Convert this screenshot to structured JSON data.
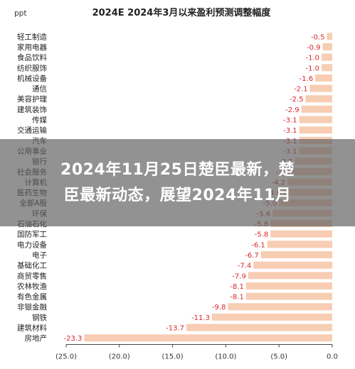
{
  "chart_data": {
    "type": "bar",
    "orientation": "horizontal",
    "title": "2024E 2024年3月以来盈利预测调整幅度",
    "unit_label": "ppt",
    "categories": [
      "轻工制造",
      "家用电器",
      "食品饮料",
      "纺织服饰",
      "机械设备",
      "通信",
      "美容护理",
      "建筑装饰",
      "传媒",
      "交通运输",
      "汽车",
      "公用事业",
      "银行",
      "社会服务",
      "计算机",
      "医药生物",
      "全部A股",
      "环保",
      "石油石化",
      "国防军工",
      "电力设备",
      "电子",
      "基础化工",
      "商贸零售",
      "农林牧渔",
      "有色金属",
      "非银金融",
      "钢铁",
      "建筑材料",
      "房地产"
    ],
    "values": [
      -0.5,
      -0.9,
      -1.0,
      -1.0,
      -1.6,
      -2.1,
      -2.5,
      -2.9,
      -3.1,
      -3.1,
      -3.1,
      -3.1,
      -3.5,
      -3.8,
      -4.2,
      -4.6,
      -5.0,
      -5.6,
      -5.8,
      -5.8,
      -6.1,
      -6.7,
      -7.4,
      -7.9,
      -8.1,
      -8.1,
      -9.8,
      -11.3,
      -13.7,
      -23.3
    ],
    "value_labels": [
      "-0.5",
      "-0.9",
      "-1.0",
      "-1.0",
      "-1.6",
      "-2.1",
      "-2.5",
      "-2.9",
      "-3.1",
      "-3.1",
      "-3.1",
      "-3.1",
      "-3.5",
      "-3.8",
      "-4.2",
      "-4.6",
      "-5.0",
      "-5.6",
      "-5.8",
      "-5.8",
      "-6.1",
      "-6.7",
      "-7.4",
      "-7.9",
      "-8.1",
      "-8.1",
      "-9.8",
      "-11.3",
      "-13.7",
      "-23.3"
    ],
    "xlim": [
      -25,
      0
    ],
    "x_ticks": [
      -25,
      -20,
      -15,
      -10,
      -5,
      0
    ],
    "x_tick_labels": [
      "(25.0)",
      "(20.0)",
      "(15.0)",
      "(10.0)",
      "(5.0)",
      "0.0"
    ],
    "grid": false,
    "bar_color": "#f7cdb3",
    "label_color": "#d8272e"
  },
  "overlay": {
    "line1": "2024年11月25日楚臣最新，楚",
    "line2": "臣最新动态，展望2024年11月"
  }
}
